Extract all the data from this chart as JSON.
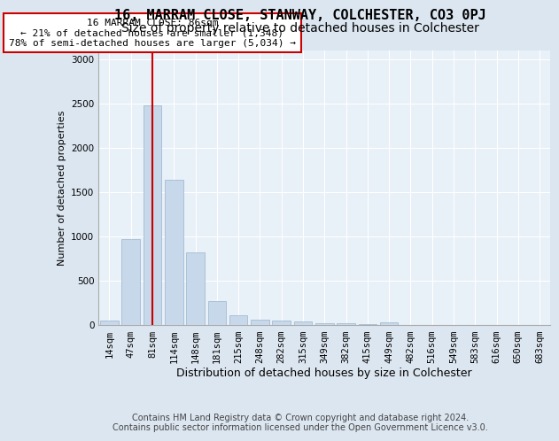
{
  "title": "16, MARRAM CLOSE, STANWAY, COLCHESTER, CO3 0PJ",
  "subtitle": "Size of property relative to detached houses in Colchester",
  "xlabel": "Distribution of detached houses by size in Colchester",
  "ylabel": "Number of detached properties",
  "categories": [
    "14sqm",
    "47sqm",
    "81sqm",
    "114sqm",
    "148sqm",
    "181sqm",
    "215sqm",
    "248sqm",
    "282sqm",
    "315sqm",
    "349sqm",
    "382sqm",
    "415sqm",
    "449sqm",
    "482sqm",
    "516sqm",
    "549sqm",
    "583sqm",
    "616sqm",
    "650sqm",
    "683sqm"
  ],
  "values": [
    50,
    970,
    2480,
    1640,
    820,
    270,
    115,
    65,
    50,
    40,
    20,
    25,
    10,
    30,
    5,
    5,
    5,
    5,
    5,
    3,
    3
  ],
  "bar_color": "#c6d8ea",
  "bar_edge_color": "#9ab4cc",
  "vline_index": 2,
  "vline_color": "#cc0000",
  "annotation_line1": "16 MARRAM CLOSE: 86sqm",
  "annotation_line2": "← 21% of detached houses are smaller (1,348)",
  "annotation_line3": "78% of semi-detached houses are larger (5,034) →",
  "annotation_box_facecolor": "#ffffff",
  "annotation_box_edgecolor": "#cc0000",
  "ylim": [
    0,
    3100
  ],
  "yticks": [
    0,
    500,
    1000,
    1500,
    2000,
    2500,
    3000
  ],
  "footer_line1": "Contains HM Land Registry data © Crown copyright and database right 2024.",
  "footer_line2": "Contains public sector information licensed under the Open Government Licence v3.0.",
  "fig_bg_color": "#dce6f0",
  "plot_bg_color": "#e8f0f8",
  "title_fontsize": 11,
  "subtitle_fontsize": 10,
  "xlabel_fontsize": 9,
  "ylabel_fontsize": 8,
  "tick_fontsize": 7.5,
  "ann_fontsize": 8,
  "footer_fontsize": 7
}
